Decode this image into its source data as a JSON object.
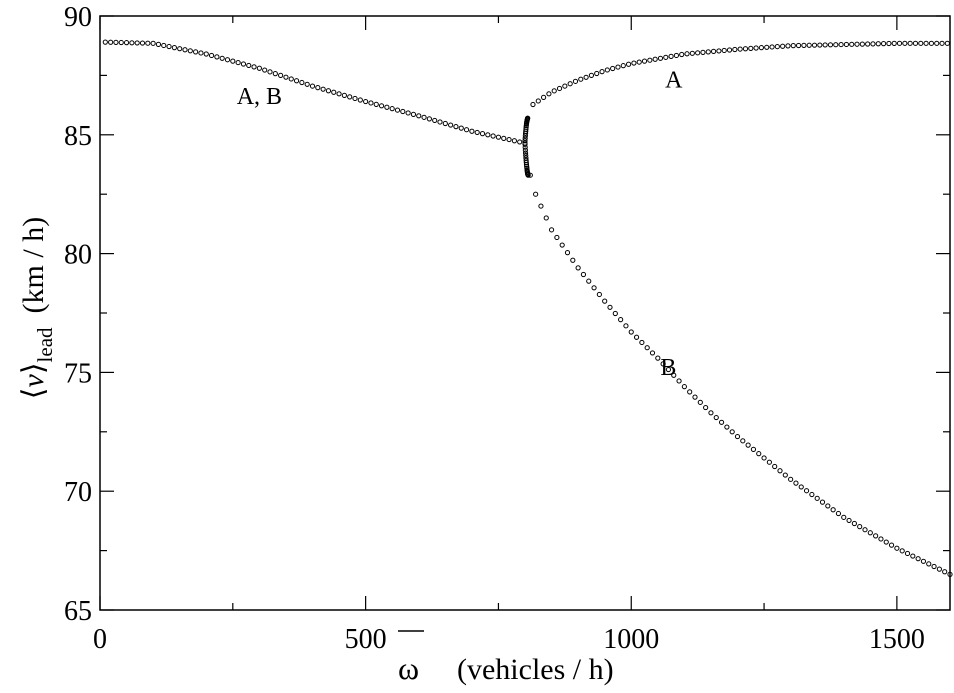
{
  "chart_data": {
    "type": "scatter",
    "title": "",
    "xlabel": "ω (vehicles / h)",
    "ylabel": "⟨v⟩lead (km / h)",
    "xlabel_parts": {
      "symbol": "ω",
      "unit": "(vehicles / h)"
    },
    "ylabel_parts": {
      "bracket_open": "⟨",
      "variable": "v",
      "bracket_close": "⟩",
      "subscript": "lead",
      "unit": "(km / h)"
    },
    "xlim": [
      0,
      1600
    ],
    "ylim": [
      65,
      90
    ],
    "xticks": [
      0,
      500,
      1000,
      1500
    ],
    "xtick_labels": [
      "0",
      "500",
      "1000",
      "1500"
    ],
    "yticks": [
      65,
      70,
      75,
      80,
      85,
      90
    ],
    "ytick_labels": [
      "65",
      "70",
      "75",
      "80",
      "85",
      "90"
    ],
    "grid": false,
    "marker": "open-circle",
    "marker_color": "#000000",
    "annotations": [
      {
        "text": "A, B",
        "x": 300,
        "y": 86.3
      },
      {
        "text": "A",
        "x": 1080,
        "y": 87.0
      },
      {
        "text": "B",
        "x": 1070,
        "y": 74.9
      }
    ],
    "series": [
      {
        "points": [
          [
            10,
            88.9
          ],
          [
            100,
            88.85
          ],
          [
            200,
            88.4
          ],
          [
            300,
            87.8
          ],
          [
            400,
            87.05
          ],
          [
            500,
            86.4
          ],
          [
            600,
            85.8
          ],
          [
            700,
            85.15
          ],
          [
            800,
            84.65
          ]
        ],
        "x_step": 10
      },
      {
        "points": [
          [
            805,
            85.7
          ],
          [
            810,
            86.2
          ],
          [
            850,
            86.8
          ],
          [
            900,
            87.3
          ],
          [
            950,
            87.7
          ],
          [
            1000,
            88.0
          ],
          [
            1100,
            88.4
          ],
          [
            1200,
            88.6
          ],
          [
            1300,
            88.75
          ],
          [
            1400,
            88.8
          ],
          [
            1500,
            88.85
          ],
          [
            1600,
            88.85
          ]
        ],
        "x_step": 10
      },
      {
        "points": [
          [
            810,
            83.3
          ],
          [
            820,
            82.5
          ],
          [
            850,
            81.0
          ],
          [
            900,
            79.4
          ],
          [
            950,
            78.0
          ],
          [
            1000,
            76.7
          ],
          [
            1050,
            75.6
          ],
          [
            1100,
            74.4
          ],
          [
            1150,
            73.3
          ],
          [
            1200,
            72.3
          ],
          [
            1300,
            70.5
          ],
          [
            1400,
            68.9
          ],
          [
            1500,
            67.6
          ],
          [
            1600,
            66.5
          ]
        ],
        "x_step": 10
      },
      {
        "points": [
          [
            800,
            84.6
          ],
          [
            801,
            84.25
          ],
          [
            802,
            83.95
          ],
          [
            803,
            83.7
          ],
          [
            804,
            83.5
          ],
          [
            805,
            83.35
          ],
          [
            806,
            83.3
          ]
        ],
        "x_step": 0.35
      },
      {
        "points": [
          [
            800,
            84.75
          ],
          [
            801,
            85.05
          ],
          [
            802,
            85.3
          ],
          [
            803,
            85.5
          ],
          [
            804,
            85.62
          ],
          [
            805,
            85.7
          ]
        ],
        "x_step": 0.35
      }
    ]
  }
}
